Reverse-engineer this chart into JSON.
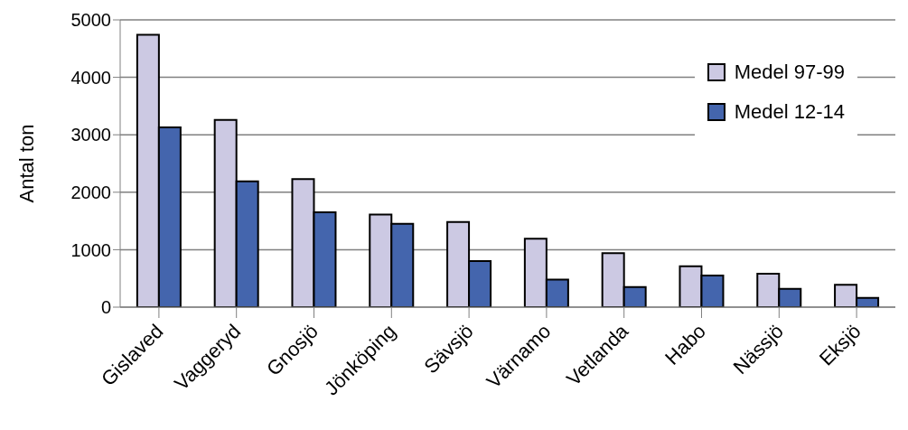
{
  "chart_data": {
    "type": "bar",
    "ylabel": "Antal ton",
    "categories": [
      "Gislaved",
      "Vaggeryd",
      "Gnosjö",
      "Jönköping",
      "Sävsjö",
      "Värnamo",
      "Vetlanda",
      "Habo",
      "Nässjö",
      "Eksjö"
    ],
    "series": [
      {
        "name": "Medel 97-99",
        "color": "#ccc9e3",
        "values": [
          4740,
          3260,
          2230,
          1610,
          1480,
          1190,
          940,
          710,
          580,
          390
        ]
      },
      {
        "name": "Medel 12-14",
        "color": "#4465ad",
        "values": [
          3130,
          2190,
          1650,
          1450,
          800,
          480,
          350,
          550,
          320,
          160
        ]
      }
    ],
    "ylim": [
      0,
      5000
    ],
    "yticks": [
      0,
      1000,
      2000,
      3000,
      4000,
      5000
    ],
    "grid": "y",
    "legend": "top right"
  }
}
